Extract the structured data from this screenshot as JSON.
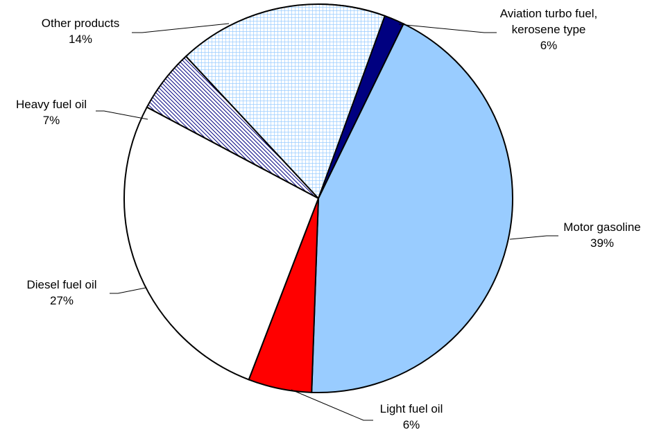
{
  "chart_data": {
    "type": "pie",
    "slices": [
      {
        "label_lines": [
          "Aviation turbo fuel,",
          "kerosene type"
        ],
        "pct_label": "6%",
        "value": 6,
        "fill": "#000080",
        "pattern": "solid"
      },
      {
        "label_lines": [
          "Motor gasoline"
        ],
        "pct_label": "39%",
        "value": 39,
        "fill": "#99ccff",
        "pattern": "solid"
      },
      {
        "label_lines": [
          "Light fuel oil"
        ],
        "pct_label": "6%",
        "value": 6,
        "fill": "#ff0000",
        "pattern": "solid"
      },
      {
        "label_lines": [
          "Diesel fuel oil"
        ],
        "pct_label": "27%",
        "value": 27,
        "fill": "#ffffff",
        "pattern": "solid"
      },
      {
        "label_lines": [
          "Heavy fuel oil"
        ],
        "pct_label": "7%",
        "value": 7,
        "fill": "#000080",
        "pattern": "diagonal-hatch"
      },
      {
        "label_lines": [
          "Other products"
        ],
        "pct_label": "14%",
        "value": 14,
        "fill": "#99ccff",
        "pattern": "grid"
      }
    ]
  }
}
